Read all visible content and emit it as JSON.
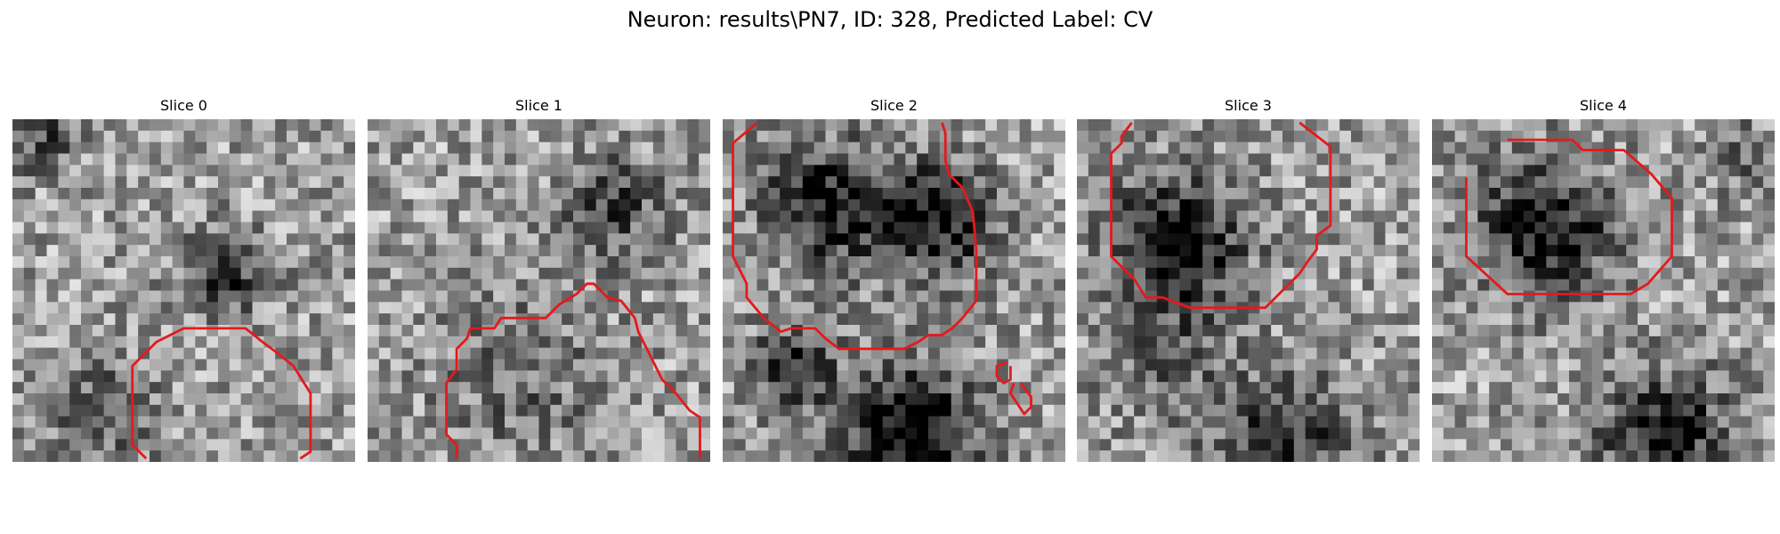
{
  "figure": {
    "title": "Neuron: results\\PN7, ID: 328, Predicted Label: CV",
    "grid_size": 30,
    "contour_color": "#e41a1c",
    "colormap": "grayscale",
    "panels": [
      {
        "title": "Slice 0",
        "seed": 11,
        "blobs": [
          [
            0.62,
            0.45,
            0.12,
            0.45
          ],
          [
            0.25,
            0.85,
            0.16,
            0.3
          ],
          [
            0.08,
            0.05,
            0.1,
            0.35
          ]
        ],
        "contours": [
          [
            [
              0.39,
              0.99
            ],
            [
              0.35,
              0.95
            ],
            [
              0.35,
              0.72
            ],
            [
              0.42,
              0.65
            ],
            [
              0.5,
              0.61
            ],
            [
              0.68,
              0.61
            ],
            [
              0.73,
              0.65
            ],
            [
              0.77,
              0.68
            ],
            [
              0.82,
              0.72
            ],
            [
              0.87,
              0.8
            ],
            [
              0.87,
              0.97
            ],
            [
              0.84,
              0.99
            ]
          ]
        ]
      },
      {
        "title": "Slice 1",
        "seed": 23,
        "blobs": [
          [
            0.72,
            0.25,
            0.15,
            0.35
          ],
          [
            0.45,
            0.75,
            0.25,
            0.2
          ]
        ],
        "contours": [
          [
            [
              0.26,
              0.99
            ],
            [
              0.26,
              0.95
            ],
            [
              0.23,
              0.92
            ],
            [
              0.23,
              0.77
            ],
            [
              0.26,
              0.73
            ],
            [
              0.26,
              0.67
            ],
            [
              0.29,
              0.64
            ],
            [
              0.3,
              0.61
            ],
            [
              0.37,
              0.61
            ],
            [
              0.39,
              0.58
            ],
            [
              0.42,
              0.58
            ],
            [
              0.43,
              0.58
            ],
            [
              0.52,
              0.58
            ],
            [
              0.56,
              0.54
            ],
            [
              0.61,
              0.51
            ],
            [
              0.64,
              0.48
            ],
            [
              0.66,
              0.48
            ],
            [
              0.7,
              0.52
            ],
            [
              0.74,
              0.53
            ],
            [
              0.78,
              0.58
            ],
            [
              0.79,
              0.62
            ],
            [
              0.82,
              0.68
            ],
            [
              0.84,
              0.72
            ],
            [
              0.86,
              0.76
            ],
            [
              0.9,
              0.8
            ],
            [
              0.94,
              0.85
            ],
            [
              0.97,
              0.87
            ],
            [
              0.97,
              0.99
            ]
          ]
        ]
      },
      {
        "title": "Slice 2",
        "seed": 37,
        "blobs": [
          [
            0.3,
            0.25,
            0.18,
            0.55
          ],
          [
            0.62,
            0.3,
            0.17,
            0.55
          ],
          [
            0.55,
            0.92,
            0.2,
            0.7
          ],
          [
            0.2,
            0.72,
            0.12,
            0.45
          ]
        ],
        "contours": [
          [
            [
              0.1,
              0.01
            ],
            [
              0.03,
              0.07
            ],
            [
              0.03,
              0.4
            ],
            [
              0.07,
              0.48
            ],
            [
              0.07,
              0.52
            ],
            [
              0.12,
              0.58
            ],
            [
              0.17,
              0.62
            ],
            [
              0.2,
              0.61
            ],
            [
              0.24,
              0.61
            ],
            [
              0.27,
              0.61
            ],
            [
              0.3,
              0.64
            ],
            [
              0.34,
              0.67
            ],
            [
              0.38,
              0.67
            ],
            [
              0.42,
              0.67
            ],
            [
              0.46,
              0.67
            ],
            [
              0.5,
              0.67
            ],
            [
              0.53,
              0.67
            ],
            [
              0.57,
              0.65
            ],
            [
              0.6,
              0.63
            ],
            [
              0.64,
              0.63
            ],
            [
              0.67,
              0.61
            ],
            [
              0.7,
              0.58
            ],
            [
              0.74,
              0.53
            ],
            [
              0.74,
              0.38
            ],
            [
              0.73,
              0.27
            ],
            [
              0.7,
              0.2
            ],
            [
              0.66,
              0.16
            ],
            [
              0.65,
              0.12
            ],
            [
              0.65,
              0.04
            ],
            [
              0.64,
              0.01
            ]
          ],
          [
            [
              0.83,
              0.71
            ],
            [
              0.8,
              0.72
            ],
            [
              0.8,
              0.75
            ],
            [
              0.82,
              0.77
            ],
            [
              0.84,
              0.76
            ],
            [
              0.84,
              0.72
            ]
          ],
          [
            [
              0.85,
              0.77
            ],
            [
              0.84,
              0.8
            ],
            [
              0.88,
              0.86
            ],
            [
              0.9,
              0.84
            ],
            [
              0.9,
              0.81
            ],
            [
              0.87,
              0.77
            ]
          ]
        ]
      },
      {
        "title": "Slice 3",
        "seed": 53,
        "blobs": [
          [
            0.3,
            0.35,
            0.2,
            0.55
          ],
          [
            0.6,
            0.95,
            0.2,
            0.45
          ],
          [
            0.25,
            0.7,
            0.18,
            0.25
          ]
        ],
        "contours": [
          [
            [
              0.16,
              0.01
            ],
            [
              0.13,
              0.05
            ],
            [
              0.13,
              0.07
            ],
            [
              0.1,
              0.1
            ],
            [
              0.1,
              0.4
            ],
            [
              0.17,
              0.47
            ],
            [
              0.2,
              0.52
            ],
            [
              0.25,
              0.52
            ],
            [
              0.33,
              0.55
            ],
            [
              0.45,
              0.55
            ],
            [
              0.55,
              0.55
            ],
            [
              0.65,
              0.45
            ],
            [
              0.67,
              0.42
            ],
            [
              0.7,
              0.38
            ],
            [
              0.7,
              0.34
            ],
            [
              0.74,
              0.31
            ],
            [
              0.74,
              0.08
            ],
            [
              0.65,
              0.01
            ]
          ]
        ]
      },
      {
        "title": "Slice 4",
        "seed": 71,
        "blobs": [
          [
            0.33,
            0.32,
            0.2,
            0.55
          ],
          [
            0.68,
            0.92,
            0.18,
            0.55
          ],
          [
            0.9,
            0.1,
            0.1,
            0.25
          ]
        ],
        "contours": [
          [
            [
              0.22,
              0.06
            ],
            [
              0.41,
              0.06
            ],
            [
              0.44,
              0.09
            ],
            [
              0.56,
              0.09
            ],
            [
              0.64,
              0.16
            ],
            [
              0.7,
              0.23
            ],
            [
              0.7,
              0.4
            ],
            [
              0.63,
              0.48
            ],
            [
              0.58,
              0.51
            ],
            [
              0.5,
              0.51
            ],
            [
              0.4,
              0.51
            ],
            [
              0.3,
              0.51
            ],
            [
              0.22,
              0.51
            ],
            [
              0.1,
              0.4
            ],
            [
              0.1,
              0.17
            ]
          ]
        ]
      }
    ]
  }
}
